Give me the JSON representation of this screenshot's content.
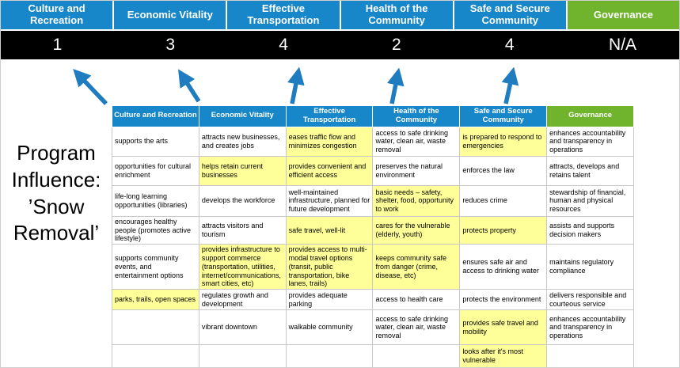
{
  "title": {
    "text": "Program\nInfluence:\n’Snow\nRemoval’"
  },
  "columns": [
    {
      "label": "Culture and Recreation",
      "score": "1",
      "header_color": "#1787C9"
    },
    {
      "label": "Economic Vitality",
      "score": "3",
      "header_color": "#1787C9"
    },
    {
      "label": "Effective Transportation",
      "score": "4",
      "header_color": "#1787C9"
    },
    {
      "label": "Health of the Community",
      "score": "2",
      "header_color": "#1787C9"
    },
    {
      "label": "Safe and Secure Community",
      "score": "4",
      "header_color": "#1787C9"
    },
    {
      "label": "Governance",
      "score": "N/A",
      "header_color": "#6FB42C"
    }
  ],
  "matrix": {
    "rows": [
      [
        {
          "text": "supports the arts",
          "highlight": false
        },
        {
          "text": "attracts new businesses, and creates jobs",
          "highlight": false
        },
        {
          "text": "eases traffic flow and minimizes congestion",
          "highlight": true
        },
        {
          "text": "access to safe drinking water, clean air, waste removal",
          "highlight": false
        },
        {
          "text": "is prepared to respond to emergencies",
          "highlight": true
        },
        {
          "text": "enhances accountability and transparency in operations",
          "highlight": false
        }
      ],
      [
        {
          "text": "opportunities for cultural enrichment",
          "highlight": false
        },
        {
          "text": "helps retain current businesses",
          "highlight": true
        },
        {
          "text": "provides convenient and efficient access",
          "highlight": true
        },
        {
          "text": "preserves the natural environment",
          "highlight": false
        },
        {
          "text": "enforces the law",
          "highlight": false
        },
        {
          "text": "attracts, develops and retains talent",
          "highlight": false
        }
      ],
      [
        {
          "text": "life-long learning opportunities (libraries)",
          "highlight": false
        },
        {
          "text": "develops the workforce",
          "highlight": false
        },
        {
          "text": "well-maintained infrastructure, planned for future development",
          "highlight": false
        },
        {
          "text": "basic needs – safety, shelter, food, opportunity to work",
          "highlight": true
        },
        {
          "text": "reduces crime",
          "highlight": false
        },
        {
          "text": "stewardship of financial, human and physical resources",
          "highlight": false
        }
      ],
      [
        {
          "text": "encourages healthy people (promotes active lifestyle)",
          "highlight": false
        },
        {
          "text": "attracts visitors and tourism",
          "highlight": false
        },
        {
          "text": "safe travel, well-lit",
          "highlight": true
        },
        {
          "text": "cares for the vulnerable (elderly, youth)",
          "highlight": true
        },
        {
          "text": "protects property",
          "highlight": true
        },
        {
          "text": "assists and supports decision makers",
          "highlight": false
        }
      ],
      [
        {
          "text": "supports community events, and entertainment options",
          "highlight": false
        },
        {
          "text": "provides infrastructure to support commerce (transportation, utilities, internet/communications, smart cities, etc)",
          "highlight": true
        },
        {
          "text": "provides access to multi-modal travel options (transit, public transportation, bike lanes, trails)",
          "highlight": true
        },
        {
          "text": "keeps community safe from danger (crime, disease, etc)",
          "highlight": true
        },
        {
          "text": "ensures safe air and access to drinking water",
          "highlight": false
        },
        {
          "text": "maintains regulatory compliance",
          "highlight": false
        }
      ],
      [
        {
          "text": "parks, trails, open spaces",
          "highlight": true
        },
        {
          "text": "regulates growth and development",
          "highlight": false
        },
        {
          "text": "provides adequate parking",
          "highlight": false
        },
        {
          "text": "access to health care",
          "highlight": false
        },
        {
          "text": "protects the environment",
          "highlight": false
        },
        {
          "text": "delivers responsible and courteous service",
          "highlight": false
        }
      ],
      [
        {
          "text": "",
          "highlight": false
        },
        {
          "text": "vibrant downtown",
          "highlight": false
        },
        {
          "text": "walkable community",
          "highlight": false
        },
        {
          "text": "access to safe drinking water, clean air, waste removal",
          "highlight": false
        },
        {
          "text": "provides safe travel and mobility",
          "highlight": true
        },
        {
          "text": "enhances accountability and transparency in operations",
          "highlight": false
        }
      ],
      [
        {
          "text": "",
          "highlight": false
        },
        {
          "text": "",
          "highlight": false
        },
        {
          "text": "",
          "highlight": false
        },
        {
          "text": "",
          "highlight": false
        },
        {
          "text": "looks after it's most vulnerable",
          "highlight": true
        },
        {
          "text": "",
          "highlight": false
        }
      ]
    ]
  },
  "colors": {
    "header_blue": "#1787C9",
    "header_green": "#6FB42C",
    "score_band_bg": "#000000",
    "highlight": "#FFFF99",
    "arrow": "#1E7CBF"
  }
}
